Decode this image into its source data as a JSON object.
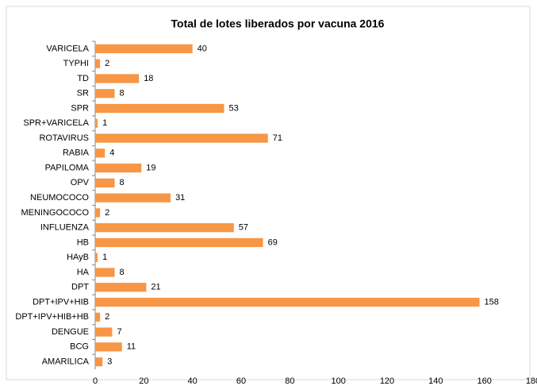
{
  "chart_data": {
    "type": "bar",
    "orientation": "horizontal",
    "title": "Total de lotes liberados por vacuna 2016",
    "categories": [
      "VARICELA",
      "TYPHI",
      "TD",
      "SR",
      "SPR",
      "SPR+VARICELA",
      "ROTAVIRUS",
      "RABIA",
      "PAPILOMA",
      "OPV",
      "NEUMOCOCO",
      "MENINGOCOCO",
      "INFLUENZA",
      "HB",
      "HAyB",
      "HA",
      "DPT",
      "DPT+IPV+HIB",
      "DPT+IPV+HIB+HB",
      "DENGUE",
      "BCG",
      "AMARILICA"
    ],
    "values": [
      40,
      2,
      18,
      8,
      53,
      1,
      71,
      4,
      19,
      8,
      31,
      2,
      57,
      69,
      1,
      8,
      21,
      158,
      2,
      7,
      11,
      3
    ],
    "color": "#f79646",
    "xlim": [
      0,
      180
    ],
    "xticks": [
      0,
      20,
      40,
      60,
      80,
      100,
      120,
      140,
      160,
      180
    ],
    "grid": false
  }
}
